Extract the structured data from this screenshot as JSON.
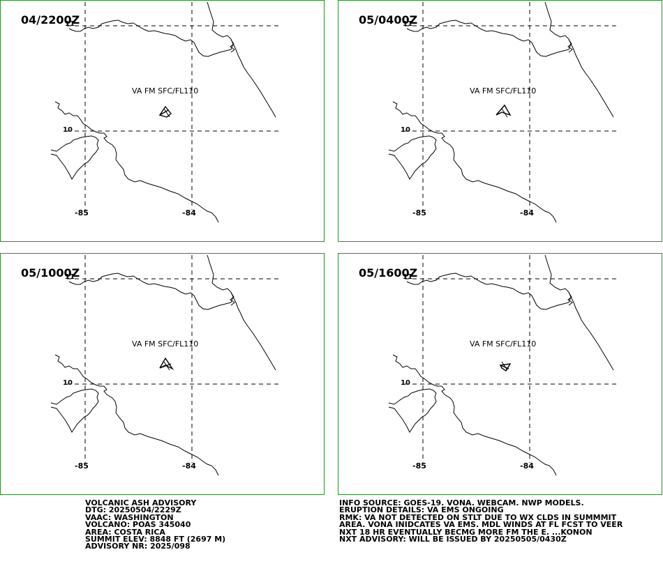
{
  "panels": [
    {
      "time": "04/2200Z",
      "label": "VA FM SFC/FL110"
    },
    {
      "time": "05/0400Z",
      "label": "VA FM SFC/FL110"
    },
    {
      "time": "05/1000Z",
      "label": "VA FM SFC/FL110"
    },
    {
      "time": "05/1600Z",
      "label": "VA FM SFC/FL110"
    }
  ],
  "axes": {
    "lon_west": "-85",
    "lon_east": "-84",
    "lat_south": "10",
    "lat_north": "11"
  },
  "advisory_left": [
    "VOLCANIC ASH ADVISORY",
    "DTG: 20250504/2229Z",
    "VAAC: WASHINGTON",
    "VOLCANO: POAS 345040",
    "AREA: COSTA RICA",
    "SUMMIT ELEV: 8848 FT (2697 M)",
    "ADVISORY NR: 2025/098"
  ],
  "advisory_right": [
    "INFO SOURCE: GOES-19. VONA. WEBCAM. NWP MODELS.",
    "ERUPTION DETAILS: VA EMS ONGOING",
    "RMK: VA NOT DETECTED ON STLT DUE TO WX CLDS IN SUMMMIT",
    "AREA. VONA INIDCATES VA EMS. MDL WINDS AT FL FCST TO VEER",
    "NXT 18 HR EVENTUALLY BECMG MORE FM THE E. ...KONON",
    "NXT ADVISORY: WILL BE ISSUED BY 20250505/0430Z"
  ],
  "colors": {
    "panel_border": "#2e8b2e",
    "lines": "#000000"
  }
}
